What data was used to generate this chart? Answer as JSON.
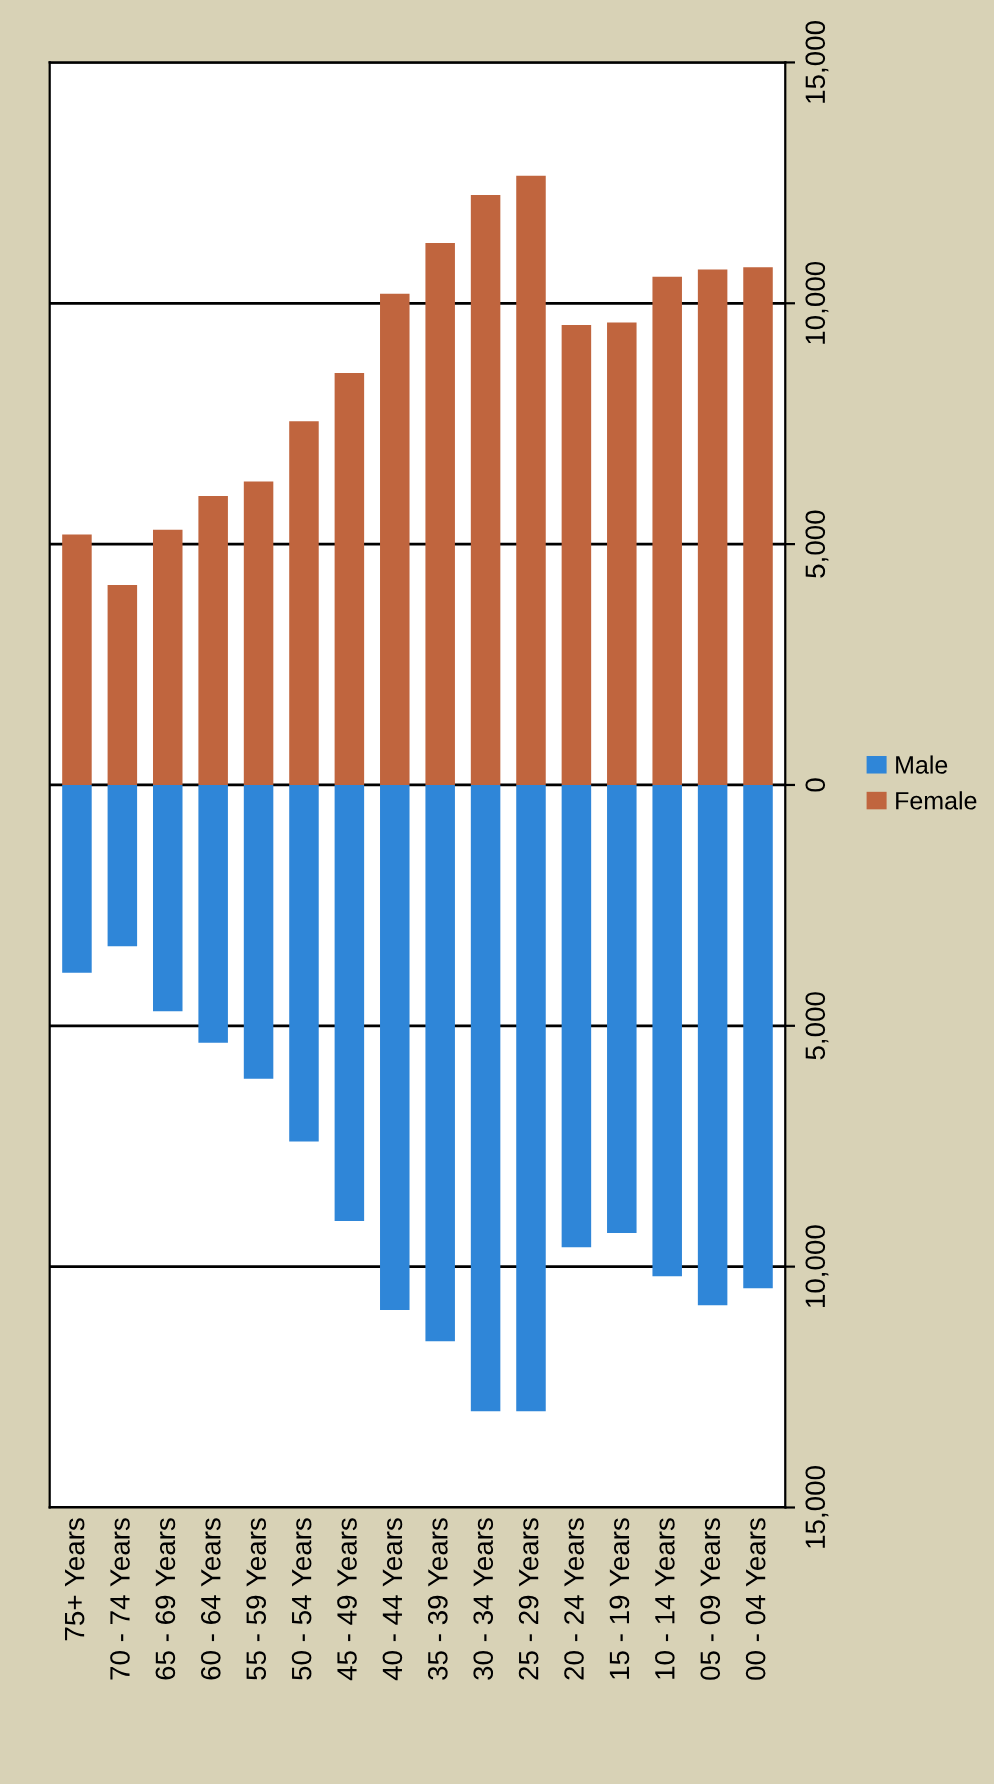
{
  "chart_data": {
    "type": "bar",
    "stacked": true,
    "categories": [
      "75+ Years",
      "70 - 74 Years",
      "65 - 69 Years",
      "60 - 64 Years",
      "55 - 59 Years",
      "50 - 54 Years",
      "45 - 49 Years",
      "40 - 44 Years",
      "35 - 39 Years",
      "30 - 34 Years",
      "25 - 29 Years",
      "20 - 24 Years",
      "15 - 19 Years",
      "10 - 14 Years",
      "05 - 09 Years",
      "00 - 04 Years"
    ],
    "series": [
      {
        "name": "Male",
        "color": "#2f86d8",
        "values": [
          -3900,
          -3350,
          -4700,
          -5350,
          -6100,
          -7400,
          -9050,
          -10900,
          -11550,
          -13000,
          -13000,
          -9600,
          -9300,
          -10200,
          -10800,
          -10450
        ]
      },
      {
        "name": "Female",
        "color": "#c0653e",
        "values": [
          5200,
          4150,
          5300,
          6000,
          6300,
          7550,
          8550,
          10200,
          11250,
          12250,
          12650,
          9550,
          9600,
          10550,
          10700,
          10750
        ]
      }
    ],
    "ylim": [
      -15000,
      15000
    ],
    "yticks": [
      {
        "value": -15000,
        "label": "15,000"
      },
      {
        "value": -10000,
        "label": "10,000"
      },
      {
        "value": -5000,
        "label": "5,000"
      },
      0,
      {
        "value": 5000,
        "label": "5,000"
      },
      {
        "value": 10000,
        "label": "10,000"
      },
      {
        "value": 15000,
        "label": "15,000"
      }
    ],
    "grid": "y",
    "legend": "right"
  }
}
